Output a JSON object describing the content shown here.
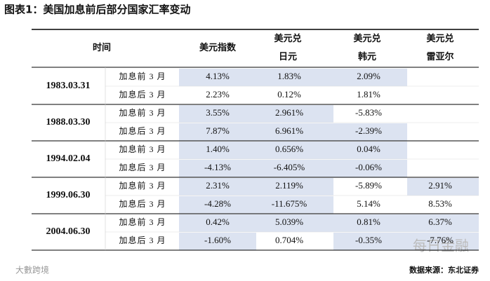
{
  "title": "图表1：美国加息前后部分国家汇率变动",
  "table": {
    "header": [
      [
        "时间"
      ],
      [
        "美元指数"
      ],
      [
        "美元兑",
        "日元"
      ],
      [
        "美元兑",
        "韩元"
      ],
      [
        "美元兑",
        "雷亚尔"
      ]
    ],
    "groups": [
      {
        "date": "1983.03.31",
        "rows": [
          {
            "label": "加息前 3 月",
            "values": [
              "4.13%",
              "1.83%",
              "2.09%",
              null
            ]
          },
          {
            "label": "加息后 3 月",
            "values": [
              "2.23%",
              "0.12%",
              "1.81%",
              null
            ]
          }
        ]
      },
      {
        "date": "1988.03.30",
        "rows": [
          {
            "label": "加息前 3 月",
            "values": [
              "3.55%",
              "2.961%",
              "-5.83%",
              null
            ]
          },
          {
            "label": "加息后 3 月",
            "values": [
              "7.87%",
              "6.961%",
              "-2.39%",
              null
            ]
          }
        ]
      },
      {
        "date": "1994.02.04",
        "rows": [
          {
            "label": "加息前 3 月",
            "values": [
              "1.40%",
              "0.656%",
              "0.04%",
              null
            ]
          },
          {
            "label": "加息后 3 月",
            "values": [
              "-4.13%",
              "-6.405%",
              "-0.06%",
              null
            ]
          }
        ]
      },
      {
        "date": "1999.06.30",
        "rows": [
          {
            "label": "加息前 3 月",
            "values": [
              "2.31%",
              "2.119%",
              "-5.89%",
              "2.91%"
            ]
          },
          {
            "label": "加息后 3 月",
            "values": [
              "-4.28%",
              "-11.675%",
              "5.14%",
              "8.53%"
            ]
          }
        ]
      },
      {
        "date": "2004.06.30",
        "rows": [
          {
            "label": "加息前 3 月",
            "values": [
              "0.42%",
              "5.039%",
              "0.81%",
              "6.37%"
            ]
          },
          {
            "label": "加息后 3 月",
            "values": [
              "-1.60%",
              "0.704%",
              "-0.35%",
              "-7.76%"
            ]
          }
        ]
      }
    ]
  },
  "watermark": "每日金融",
  "logo": "大數跨境",
  "source": "数据来源：东北证券"
}
